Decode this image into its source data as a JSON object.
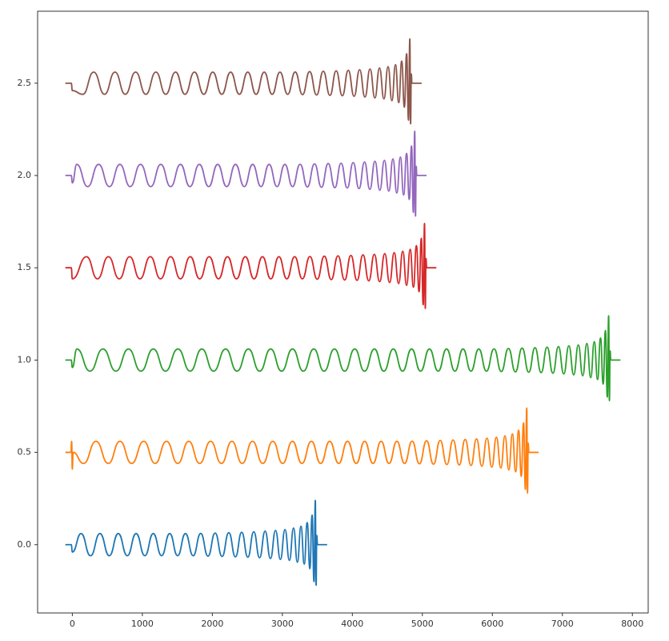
{
  "chart_data": {
    "type": "line",
    "xlim": [
      -496,
      8226
    ],
    "ylim": [
      -0.37,
      2.89
    ],
    "xticks": [
      0,
      1000,
      2000,
      3000,
      4000,
      5000,
      6000,
      7000,
      8000
    ],
    "yticks": [
      {
        "value": 0,
        "label": "0.0"
      },
      {
        "value": 0.5,
        "label": "0.5"
      },
      {
        "value": 1,
        "label": "1.0"
      },
      {
        "value": 1.5,
        "label": "1.5"
      },
      {
        "value": 2,
        "label": "2.0"
      },
      {
        "value": 2.5,
        "label": "2.5"
      }
    ],
    "grid": false,
    "series": [
      {
        "color": "#1f77b4",
        "x": [
          -100,
          -15,
          0,
          125,
          259,
          395,
          528,
          656,
          785,
          911,
          1036,
          1156,
          1275,
          1391,
          1504,
          1616,
          1726,
          1834,
          1938,
          2040,
          2139,
          2235,
          2330,
          2419,
          2507,
          2592,
          2675,
          2754,
          2830,
          2903,
          2972,
          3038,
          3101,
          3160,
          3215,
          3266,
          3313,
          3355,
          3393,
          3425,
          3452,
          3471,
          3482,
          3492,
          3502,
          3640
        ],
        "values": [
          0,
          0,
          -0.04,
          0.06,
          -0.06,
          0.06,
          -0.06,
          0.06,
          -0.06,
          0.06,
          -0.06,
          0.06,
          -0.06,
          0.06,
          -0.06,
          0.06,
          -0.06,
          0.061,
          -0.062,
          0.063,
          -0.064,
          0.065,
          -0.066,
          0.067,
          -0.068,
          0.07,
          -0.071,
          0.073,
          -0.075,
          0.077,
          -0.08,
          0.082,
          -0.085,
          0.09,
          -0.095,
          0.1,
          -0.105,
          0.12,
          -0.13,
          0.16,
          -0.2,
          0.24,
          -0.22,
          0.05,
          0,
          0
        ]
      },
      {
        "color": "#ff7f0e",
        "x": [
          -100,
          -20,
          -10,
          0,
          10,
          160,
          338,
          514,
          680,
          847,
          1020,
          1182,
          1345,
          1506,
          1663,
          1819,
          1975,
          2130,
          2279,
          2426,
          2574,
          2720,
          2864,
          3004,
          3145,
          3279,
          3415,
          3548,
          3676,
          3805,
          3931,
          4056,
          4176,
          4295,
          4411,
          4524,
          4636,
          4746,
          4854,
          4958,
          5060,
          5159,
          5255,
          5350,
          5439,
          5527,
          5612,
          5695,
          5774,
          5850,
          5923,
          5992,
          6058,
          6121,
          6180,
          6235,
          6286,
          6333,
          6375,
          6413,
          6445,
          6472,
          6491,
          6502,
          6512,
          6522,
          6660
        ],
        "values": [
          0.5,
          0.5,
          0.56,
          0.41,
          0.5,
          0.44,
          0.56,
          0.44,
          0.56,
          0.44,
          0.56,
          0.44,
          0.56,
          0.44,
          0.56,
          0.44,
          0.56,
          0.44,
          0.56,
          0.44,
          0.56,
          0.44,
          0.56,
          0.44,
          0.56,
          0.44,
          0.56,
          0.44,
          0.56,
          0.44,
          0.56,
          0.44,
          0.56,
          0.44,
          0.56,
          0.44,
          0.56,
          0.44,
          0.561,
          0.438,
          0.563,
          0.436,
          0.565,
          0.434,
          0.567,
          0.432,
          0.57,
          0.429,
          0.573,
          0.425,
          0.577,
          0.42,
          0.582,
          0.415,
          0.59,
          0.405,
          0.6,
          0.395,
          0.62,
          0.37,
          0.66,
          0.3,
          0.74,
          0.28,
          0.55,
          0.5,
          0.5
        ]
      },
      {
        "color": "#2ca02c",
        "x": [
          -100,
          -15,
          0,
          65,
          252,
          437,
          623,
          802,
          980,
          1157,
          1330,
          1508,
          1684,
          1850,
          2017,
          2190,
          2352,
          2515,
          2676,
          2833,
          2989,
          3145,
          3300,
          3449,
          3596,
          3744,
          3890,
          4034,
          4174,
          4315,
          4449,
          4585,
          4718,
          4846,
          4975,
          5101,
          5226,
          5346,
          5465,
          5581,
          5694,
          5806,
          5916,
          6024,
          6128,
          6230,
          6329,
          6425,
          6520,
          6609,
          6697,
          6782,
          6865,
          6944,
          7020,
          7093,
          7162,
          7228,
          7291,
          7350,
          7405,
          7456,
          7503,
          7545,
          7583,
          7615,
          7642,
          7661,
          7672,
          7682,
          7692,
          7830
        ],
        "values": [
          1,
          1,
          0.96,
          1.06,
          0.94,
          1.06,
          0.94,
          1.06,
          0.94,
          1.06,
          0.94,
          1.06,
          0.94,
          1.06,
          0.94,
          1.06,
          0.94,
          1.06,
          0.94,
          1.06,
          0.94,
          1.06,
          0.94,
          1.06,
          0.94,
          1.06,
          0.94,
          1.06,
          0.94,
          1.06,
          0.94,
          1.06,
          0.94,
          1.06,
          0.94,
          1.06,
          0.94,
          1.06,
          0.94,
          1.06,
          0.94,
          1.06,
          0.94,
          1.061,
          0.938,
          1.063,
          0.936,
          1.065,
          0.934,
          1.067,
          0.932,
          1.07,
          0.929,
          1.073,
          0.925,
          1.077,
          0.92,
          1.082,
          0.915,
          1.09,
          0.905,
          1.1,
          0.895,
          1.12,
          0.87,
          1.16,
          0.8,
          1.24,
          0.78,
          1.05,
          1,
          1
        ]
      },
      {
        "color": "#d62728",
        "x": [
          -100,
          -15,
          0,
          203,
          359,
          515,
          670,
          819,
          966,
          1114,
          1260,
          1404,
          1544,
          1685,
          1819,
          1955,
          2088,
          2216,
          2345,
          2471,
          2596,
          2716,
          2835,
          2951,
          3064,
          3176,
          3286,
          3394,
          3498,
          3600,
          3699,
          3795,
          3890,
          3979,
          4067,
          4152,
          4235,
          4314,
          4390,
          4463,
          4532,
          4598,
          4661,
          4720,
          4775,
          4826,
          4873,
          4915,
          4953,
          4985,
          5012,
          5031,
          5042,
          5052,
          5062,
          5200
        ],
        "values": [
          1.5,
          1.5,
          1.44,
          1.56,
          1.44,
          1.56,
          1.44,
          1.56,
          1.44,
          1.56,
          1.44,
          1.56,
          1.44,
          1.56,
          1.44,
          1.56,
          1.44,
          1.56,
          1.44,
          1.56,
          1.44,
          1.56,
          1.44,
          1.56,
          1.44,
          1.56,
          1.44,
          1.561,
          1.438,
          1.563,
          1.436,
          1.565,
          1.434,
          1.567,
          1.432,
          1.57,
          1.429,
          1.573,
          1.425,
          1.577,
          1.42,
          1.582,
          1.415,
          1.59,
          1.405,
          1.6,
          1.395,
          1.62,
          1.37,
          1.66,
          1.3,
          1.74,
          1.28,
          1.55,
          1.5,
          1.5
        ]
      },
      {
        "color": "#9467bd",
        "x": [
          -100,
          -15,
          0,
          63,
          219,
          375,
          530,
          679,
          826,
          974,
          1120,
          1264,
          1404,
          1545,
          1679,
          1815,
          1948,
          2076,
          2205,
          2331,
          2456,
          2576,
          2695,
          2811,
          2924,
          3036,
          3146,
          3254,
          3358,
          3460,
          3559,
          3655,
          3750,
          3839,
          3927,
          4012,
          4095,
          4174,
          4250,
          4323,
          4392,
          4458,
          4521,
          4580,
          4635,
          4686,
          4733,
          4775,
          4813,
          4845,
          4872,
          4891,
          4902,
          4912,
          4922,
          5060
        ],
        "values": [
          2,
          2,
          1.96,
          2.06,
          1.94,
          2.06,
          1.94,
          2.06,
          1.94,
          2.06,
          1.94,
          2.06,
          1.94,
          2.06,
          1.94,
          2.06,
          1.94,
          2.06,
          1.94,
          2.06,
          1.94,
          2.06,
          1.94,
          2.06,
          1.94,
          2.06,
          1.94,
          2.061,
          1.938,
          2.063,
          1.936,
          2.065,
          1.934,
          2.067,
          1.932,
          2.07,
          1.929,
          2.073,
          1.925,
          2.077,
          1.92,
          2.082,
          1.915,
          2.09,
          1.905,
          2.1,
          1.895,
          2.12,
          1.87,
          2.16,
          1.8,
          2.24,
          1.78,
          2.05,
          2,
          2
        ]
      },
      {
        "color": "#8c564b",
        "x": [
          -100,
          -15,
          0,
          149,
          305,
          460,
          609,
          756,
          904,
          1050,
          1194,
          1334,
          1475,
          1609,
          1745,
          1878,
          2006,
          2135,
          2261,
          2386,
          2506,
          2625,
          2741,
          2854,
          2966,
          3076,
          3184,
          3288,
          3390,
          3489,
          3585,
          3680,
          3769,
          3857,
          3942,
          4025,
          4104,
          4180,
          4253,
          4322,
          4388,
          4451,
          4510,
          4565,
          4616,
          4663,
          4705,
          4743,
          4775,
          4802,
          4821,
          4832,
          4842,
          4852,
          4990
        ],
        "values": [
          2.5,
          2.5,
          2.46,
          2.44,
          2.56,
          2.44,
          2.56,
          2.44,
          2.56,
          2.44,
          2.56,
          2.44,
          2.56,
          2.44,
          2.56,
          2.44,
          2.56,
          2.44,
          2.56,
          2.44,
          2.56,
          2.44,
          2.56,
          2.44,
          2.56,
          2.44,
          2.561,
          2.438,
          2.563,
          2.436,
          2.565,
          2.434,
          2.567,
          2.432,
          2.57,
          2.429,
          2.573,
          2.425,
          2.577,
          2.42,
          2.582,
          2.415,
          2.59,
          2.405,
          2.6,
          2.395,
          2.62,
          2.37,
          2.66,
          2.3,
          2.74,
          2.28,
          2.55,
          2.5,
          2.5
        ]
      }
    ]
  }
}
